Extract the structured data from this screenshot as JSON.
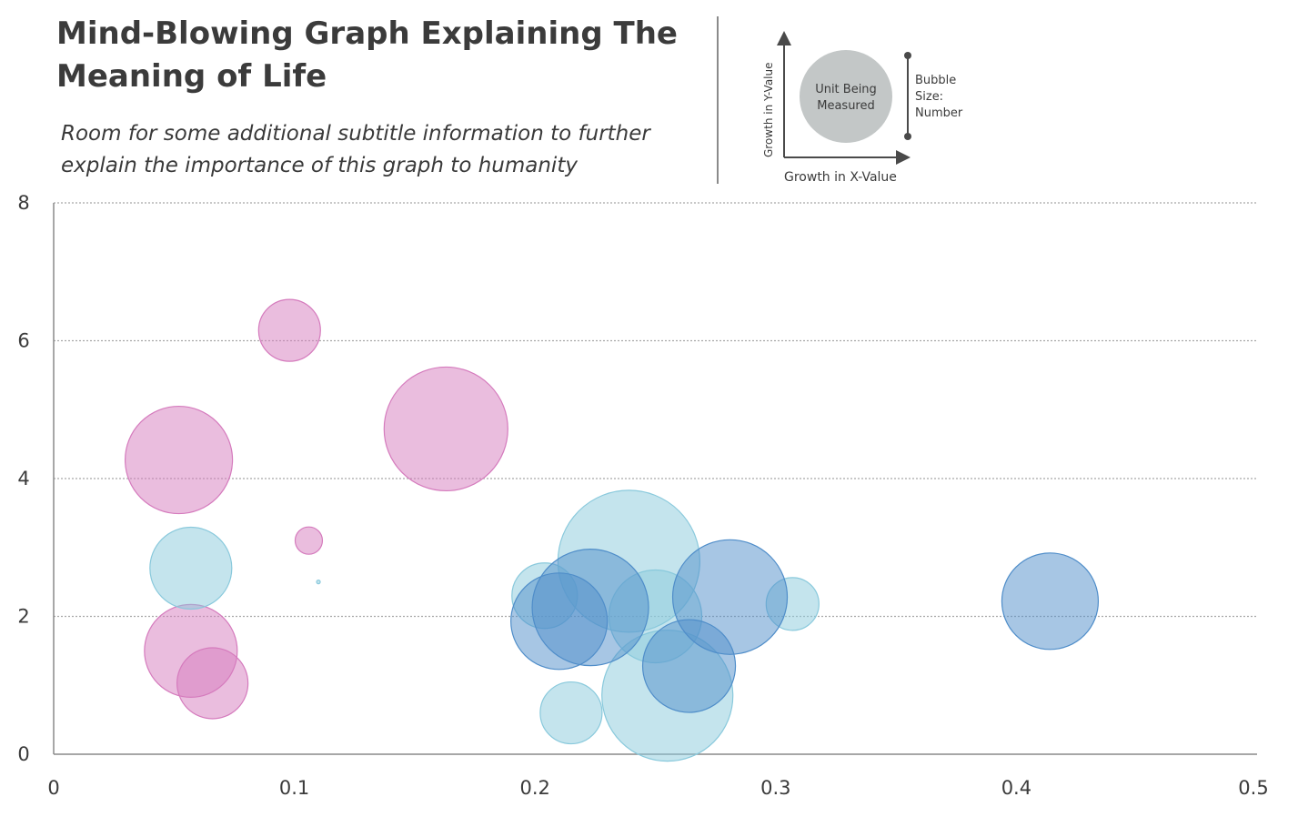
{
  "chart_data": {
    "type": "bubble",
    "title": "Mind-Blowing Graph Explaining The Meaning of Life",
    "subtitle": "Room for some additional subtitle information to further explain the importance of this graph to humanity",
    "xlim": [
      0,
      0.5
    ],
    "ylim": [
      0,
      8
    ],
    "x_ticks": [
      "0",
      "0.1",
      "0.2",
      "0.3",
      "0.4",
      "0.5"
    ],
    "y_ticks": [
      "0",
      "2",
      "4",
      "6",
      "8"
    ],
    "grid": "horizontal-dotted",
    "legend_key": {
      "bubble_label": "Unit Being Measured",
      "x_label": "Growth in X-Value",
      "y_label": "Growth in Y-Value",
      "size_label": "Bubble Size: Number",
      "placement": "top-right"
    },
    "series": [
      {
        "color": "#d57bbd",
        "points": [
          {
            "x": 0.098,
            "y": 6.15,
            "size": 34
          },
          {
            "x": 0.052,
            "y": 4.27,
            "size": 59
          },
          {
            "x": 0.163,
            "y": 4.72,
            "size": 68
          },
          {
            "x": 0.106,
            "y": 3.1,
            "size": 15
          },
          {
            "x": 0.057,
            "y": 1.5,
            "size": 51
          },
          {
            "x": 0.066,
            "y": 1.03,
            "size": 39
          }
        ]
      },
      {
        "color": "#89c9dc",
        "points": [
          {
            "x": 0.057,
            "y": 2.7,
            "size": 45
          },
          {
            "x": 0.11,
            "y": 2.5,
            "size": 2
          },
          {
            "x": 0.204,
            "y": 2.3,
            "size": 36
          },
          {
            "x": 0.239,
            "y": 2.8,
            "size": 78
          },
          {
            "x": 0.25,
            "y": 2.0,
            "size": 51
          },
          {
            "x": 0.255,
            "y": 0.85,
            "size": 72
          },
          {
            "x": 0.215,
            "y": 0.6,
            "size": 34
          },
          {
            "x": 0.307,
            "y": 2.18,
            "size": 29
          }
        ]
      },
      {
        "color": "#4f8dc9",
        "points": [
          {
            "x": 0.21,
            "y": 1.93,
            "size": 53
          },
          {
            "x": 0.223,
            "y": 2.13,
            "size": 64
          },
          {
            "x": 0.281,
            "y": 2.28,
            "size": 63
          },
          {
            "x": 0.264,
            "y": 1.28,
            "size": 51
          },
          {
            "x": 0.414,
            "y": 2.22,
            "size": 53
          }
        ]
      }
    ]
  }
}
